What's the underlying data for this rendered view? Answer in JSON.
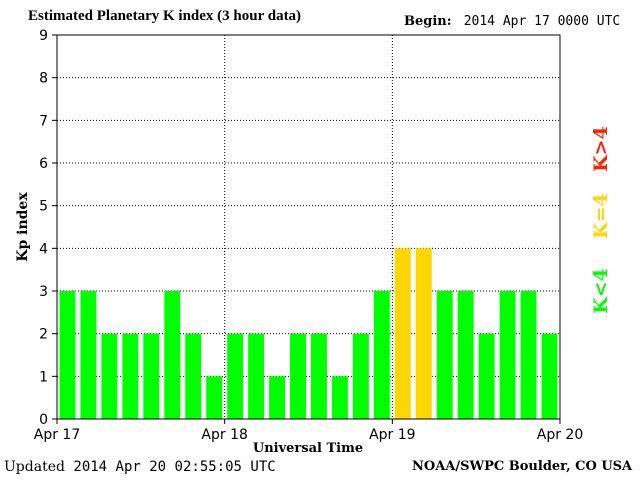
{
  "header": {
    "title": "Estimated Planetary K index (3 hour data)",
    "begin_label": "Begin:",
    "begin_value": "2014 Apr 17 0000 UTC"
  },
  "footer": {
    "updated_label": "Updated",
    "updated_value": "2014 Apr 20 02:55:05 UTC",
    "credit": "NOAA/SWPC Boulder, CO USA"
  },
  "legend": {
    "low": "K<4",
    "mid": "K=4",
    "high": "K>4"
  },
  "colors": {
    "low": "#00ff00",
    "mid": "#ffd700",
    "high": "#ff2200"
  },
  "chart_data": {
    "type": "bar",
    "title": "Estimated Planetary K index (3 hour data)",
    "xlabel": "Universal Time",
    "ylabel": "Kp index",
    "ylim": [
      0,
      9
    ],
    "yticks": [
      0,
      1,
      2,
      3,
      4,
      5,
      6,
      7,
      8,
      9
    ],
    "xticks": [
      "Apr 17",
      "Apr 18",
      "Apr 19",
      "Apr 20"
    ],
    "grid": true,
    "values": [
      3,
      3,
      2,
      2,
      2,
      3,
      2,
      1,
      2,
      2,
      1,
      2,
      2,
      1,
      2,
      3,
      4,
      4,
      3,
      3,
      2,
      3,
      3,
      2
    ]
  }
}
